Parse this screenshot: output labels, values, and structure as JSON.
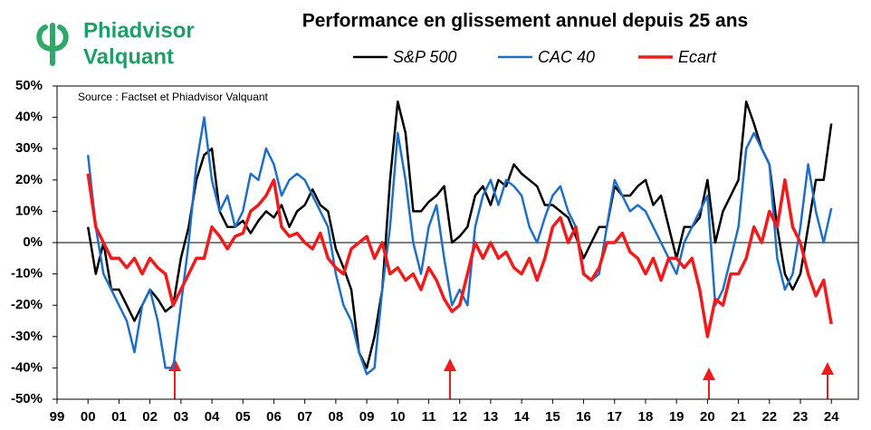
{
  "chart_data": {
    "type": "line",
    "title": "Performance en glissement annuel depuis 25 ans",
    "brand": [
      "Phiadvisor",
      "Valquant"
    ],
    "annotation": "Source : Factset et Phiadvisor Valquant",
    "xlim": [
      1999.5,
      2025.37
    ],
    "xticks": [
      {
        "value": 1999.5,
        "label": "99"
      },
      {
        "value": 2000.5,
        "label": "00"
      },
      {
        "value": 2001.5,
        "label": "01"
      },
      {
        "value": 2002.5,
        "label": "02"
      },
      {
        "value": 2003.5,
        "label": "03"
      },
      {
        "value": 2004.5,
        "label": "04"
      },
      {
        "value": 2005.5,
        "label": "05"
      },
      {
        "value": 2006.5,
        "label": "06"
      },
      {
        "value": 2007.5,
        "label": "07"
      },
      {
        "value": 2008.5,
        "label": "08"
      },
      {
        "value": 2009.5,
        "label": "09"
      },
      {
        "value": 2010.5,
        "label": "10"
      },
      {
        "value": 2011.5,
        "label": "11"
      },
      {
        "value": 2012.5,
        "label": "12"
      },
      {
        "value": 2013.5,
        "label": "13"
      },
      {
        "value": 2014.5,
        "label": "14"
      },
      {
        "value": 2015.5,
        "label": "15"
      },
      {
        "value": 2016.5,
        "label": "16"
      },
      {
        "value": 2017.5,
        "label": "17"
      },
      {
        "value": 2018.5,
        "label": "18"
      },
      {
        "value": 2019.5,
        "label": "19"
      },
      {
        "value": 2020.5,
        "label": "20"
      },
      {
        "value": 2021.5,
        "label": "21"
      },
      {
        "value": 2022.5,
        "label": "22"
      },
      {
        "value": 2023.5,
        "label": "23"
      },
      {
        "value": 2024.5,
        "label": "24"
      }
    ],
    "ylim": [
      -50,
      50
    ],
    "yticks": [
      {
        "value": 50,
        "label": "50%"
      },
      {
        "value": 40,
        "label": "40%"
      },
      {
        "value": 30,
        "label": "30%"
      },
      {
        "value": 20,
        "label": "20%"
      },
      {
        "value": 10,
        "label": "10%"
      },
      {
        "value": 0,
        "label": "0%"
      },
      {
        "value": -10,
        "label": "-10%"
      },
      {
        "value": -20,
        "label": "-20%"
      },
      {
        "value": -30,
        "label": "-30%"
      },
      {
        "value": -40,
        "label": "-40%"
      },
      {
        "value": -50,
        "label": "-50%"
      }
    ],
    "grid": false,
    "x": [
      2000.5,
      2000.75,
      2001,
      2001.25,
      2001.5,
      2001.75,
      2002,
      2002.25,
      2002.5,
      2002.75,
      2003,
      2003.25,
      2003.5,
      2003.75,
      2004,
      2004.25,
      2004.5,
      2004.75,
      2005,
      2005.25,
      2005.5,
      2005.75,
      2006,
      2006.25,
      2006.5,
      2006.75,
      2007,
      2007.25,
      2007.5,
      2007.75,
      2008,
      2008.25,
      2008.5,
      2008.75,
      2009,
      2009.25,
      2009.5,
      2009.75,
      2010,
      2010.25,
      2010.5,
      2010.75,
      2011,
      2011.25,
      2011.5,
      2011.75,
      2012,
      2012.25,
      2012.5,
      2012.75,
      2013,
      2013.25,
      2013.5,
      2013.75,
      2014,
      2014.25,
      2014.5,
      2014.75,
      2015,
      2015.25,
      2015.5,
      2015.75,
      2016,
      2016.25,
      2016.5,
      2016.75,
      2017,
      2017.25,
      2017.5,
      2017.75,
      2018,
      2018.25,
      2018.5,
      2018.75,
      2019,
      2019.25,
      2019.5,
      2019.75,
      2020,
      2020.25,
      2020.5,
      2020.75,
      2021,
      2021.25,
      2021.5,
      2021.75,
      2022,
      2022.25,
      2022.5,
      2022.75,
      2023,
      2023.25,
      2023.5,
      2023.75,
      2024,
      2024.25,
      2024.5
    ],
    "series": [
      {
        "name": "S&P 500",
        "color": "#000000",
        "width": 2.5,
        "values": [
          5,
          -10,
          0,
          -15,
          -15,
          -20,
          -25,
          -20,
          -15,
          -18,
          -22,
          -20,
          -5,
          5,
          20,
          28,
          30,
          10,
          5,
          5,
          7,
          3,
          7,
          10,
          8,
          12,
          5,
          10,
          12,
          17,
          12,
          10,
          -2,
          -8,
          -15,
          -35,
          -40,
          -30,
          -15,
          20,
          45,
          35,
          10,
          10,
          13,
          15,
          18,
          0,
          2,
          5,
          15,
          18,
          12,
          20,
          18,
          25,
          22,
          20,
          18,
          12,
          12,
          10,
          8,
          2,
          -5,
          0,
          5,
          5,
          18,
          15,
          15,
          18,
          20,
          12,
          15,
          5,
          -5,
          5,
          5,
          8,
          20,
          0,
          10,
          15,
          20,
          45,
          38,
          30,
          25,
          5,
          -10,
          -15,
          -10,
          5,
          20,
          20,
          38
        ]
      },
      {
        "name": "CAC 40",
        "color": "#1f6fc5",
        "width": 2.5,
        "values": [
          28,
          5,
          -10,
          -15,
          -20,
          -25,
          -35,
          -20,
          -15,
          -25,
          -40,
          -40,
          -20,
          0,
          25,
          40,
          20,
          10,
          15,
          5,
          10,
          22,
          20,
          30,
          25,
          15,
          20,
          22,
          20,
          15,
          10,
          5,
          -10,
          -20,
          -25,
          -35,
          -42,
          -40,
          -15,
          5,
          35,
          20,
          0,
          -10,
          5,
          12,
          -5,
          -20,
          -15,
          -20,
          5,
          15,
          20,
          12,
          20,
          18,
          15,
          5,
          0,
          8,
          15,
          18,
          10,
          5,
          -10,
          -12,
          -10,
          5,
          20,
          15,
          10,
          12,
          10,
          5,
          0,
          -5,
          -10,
          0,
          5,
          10,
          15,
          -20,
          -15,
          -5,
          5,
          30,
          35,
          30,
          25,
          -5,
          -15,
          -10,
          5,
          25,
          10,
          0,
          11
        ]
      },
      {
        "name": "Ecart",
        "color": "#ee1c1c",
        "width": 3.5,
        "values": [
          22,
          5,
          0,
          -5,
          -5,
          -8,
          -5,
          -10,
          -5,
          -8,
          -10,
          -20,
          -15,
          -10,
          -5,
          -5,
          5,
          2,
          -2,
          2,
          3,
          10,
          12,
          15,
          20,
          5,
          2,
          3,
          0,
          -2,
          3,
          -5,
          -8,
          -10,
          -2,
          0,
          2,
          -5,
          0,
          -10,
          -8,
          -12,
          -10,
          -15,
          -8,
          -12,
          -18,
          -22,
          -20,
          -10,
          0,
          -5,
          0,
          -5,
          -3,
          -8,
          -10,
          -5,
          -12,
          -5,
          5,
          8,
          0,
          5,
          -10,
          -12,
          -8,
          0,
          0,
          3,
          -3,
          -5,
          -10,
          -5,
          -12,
          -5,
          -5,
          -8,
          -5,
          -15,
          -30,
          -18,
          -20,
          -10,
          -10,
          -5,
          5,
          0,
          10,
          5,
          20,
          5,
          0,
          -10,
          -17,
          -12,
          -26
        ]
      }
    ]
  }
}
